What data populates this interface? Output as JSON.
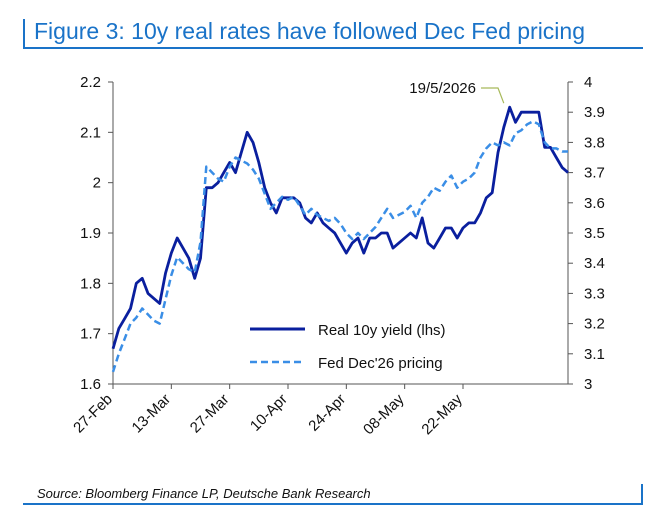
{
  "title": "Figure 3: 10y real rates have followed Dec Fed pricing",
  "source": "Source: Bloomberg Finance LP, Deutsche Bank Research",
  "chart_data": {
    "type": "line",
    "x_tick_labels": [
      "27-Feb",
      "13-Mar",
      "27-Mar",
      "10-Apr",
      "24-Apr",
      "08-May",
      "22-May"
    ],
    "y_left": {
      "lim": [
        1.6,
        2.2
      ],
      "ticks": [
        "1.6",
        "1.7",
        "1.8",
        "1.9",
        "2",
        "2.1",
        "2.2"
      ]
    },
    "y_right": {
      "lim": [
        3.0,
        4.0
      ],
      "ticks": [
        "3",
        "3.1",
        "3.2",
        "3.3",
        "3.4",
        "3.5",
        "3.6",
        "3.7",
        "3.8",
        "3.9",
        "4"
      ]
    },
    "annotation": "19/5/2026",
    "legend_position": "bottom-center",
    "series": [
      {
        "name": "Real 10y yield (lhs)",
        "axis": "left",
        "color": "#0a1f9e",
        "style": "solid",
        "values": [
          1.67,
          1.71,
          1.73,
          1.75,
          1.8,
          1.81,
          1.78,
          1.77,
          1.76,
          1.82,
          1.86,
          1.89,
          1.87,
          1.85,
          1.81,
          1.85,
          1.99,
          1.99,
          2.0,
          2.02,
          2.04,
          2.02,
          2.06,
          2.1,
          2.08,
          2.04,
          1.99,
          1.96,
          1.94,
          1.97,
          1.97,
          1.97,
          1.96,
          1.93,
          1.92,
          1.94,
          1.92,
          1.91,
          1.9,
          1.88,
          1.86,
          1.88,
          1.89,
          1.86,
          1.89,
          1.89,
          1.9,
          1.9,
          1.87,
          1.88,
          1.89,
          1.9,
          1.89,
          1.93,
          1.88,
          1.87,
          1.89,
          1.91,
          1.91,
          1.89,
          1.91,
          1.92,
          1.92,
          1.94,
          1.97,
          1.98,
          2.06,
          2.11,
          2.15,
          2.12,
          2.14,
          2.14,
          2.14,
          2.14,
          2.07,
          2.07,
          2.05,
          2.03,
          2.02
        ]
      },
      {
        "name": "Fed Dec'26 pricing",
        "axis": "right",
        "color": "#3a8ee6",
        "style": "dashed",
        "values": [
          3.04,
          3.1,
          3.15,
          3.2,
          3.22,
          3.25,
          3.23,
          3.21,
          3.2,
          3.28,
          3.36,
          3.42,
          3.4,
          3.38,
          3.37,
          3.47,
          3.72,
          3.7,
          3.68,
          3.67,
          3.72,
          3.75,
          3.74,
          3.73,
          3.71,
          3.68,
          3.63,
          3.58,
          3.6,
          3.62,
          3.61,
          3.62,
          3.59,
          3.56,
          3.58,
          3.56,
          3.55,
          3.54,
          3.55,
          3.53,
          3.5,
          3.48,
          3.5,
          3.48,
          3.5,
          3.52,
          3.55,
          3.58,
          3.55,
          3.56,
          3.57,
          3.59,
          3.55,
          3.6,
          3.62,
          3.65,
          3.64,
          3.67,
          3.69,
          3.65,
          3.67,
          3.68,
          3.7,
          3.75,
          3.78,
          3.8,
          3.79,
          3.8,
          3.79,
          3.83,
          3.84,
          3.86,
          3.87,
          3.86,
          3.8,
          3.78,
          3.78,
          3.77,
          3.77
        ]
      }
    ]
  }
}
